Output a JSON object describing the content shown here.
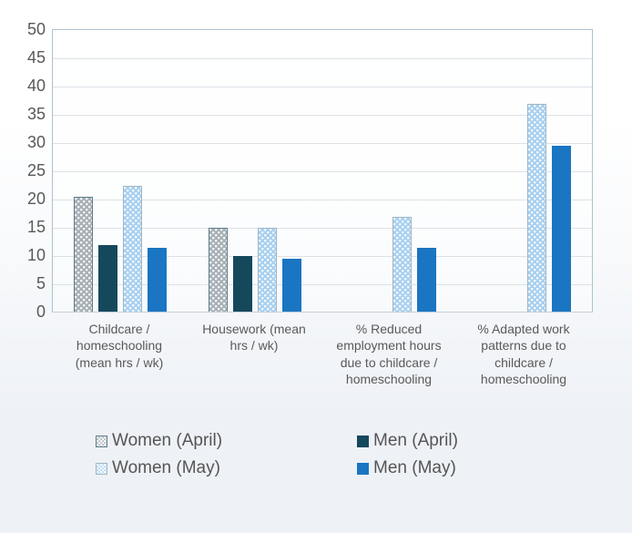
{
  "chart_data": {
    "type": "bar",
    "title": "",
    "categories": [
      "Childcare / homeschooling (mean hrs / wk)",
      "Housework (mean hrs / wk)",
      "% Reduced employment hours due to childcare / homeschooling",
      "% Adapted work patterns due to childcare / homeschooling"
    ],
    "series": [
      {
        "name": "Women (April)",
        "fill": "#a7b0b6",
        "border": "#5f7d8c",
        "pattern": "dots",
        "values": [
          20.5,
          15,
          null,
          null
        ]
      },
      {
        "name": "Men (April)",
        "fill": "#16485c",
        "border": "#16485c",
        "pattern": "solid",
        "values": [
          12,
          10,
          null,
          null
        ]
      },
      {
        "name": "Women (May)",
        "fill": "#a8d0f0",
        "border": "#9fb6c4",
        "pattern": "dots",
        "values": [
          22.5,
          15,
          17,
          37
        ]
      },
      {
        "name": "Men (May)",
        "fill": "#1a75c2",
        "border": "#1a75c2",
        "pattern": "solid",
        "values": [
          11.5,
          9.5,
          11.5,
          29.5
        ]
      }
    ],
    "y_axis": {
      "min": 0,
      "max": 50,
      "step": 5,
      "ticks": [
        0,
        5,
        10,
        15,
        20,
        25,
        30,
        35,
        40,
        45,
        50
      ]
    },
    "xlabel": "",
    "ylabel": "",
    "grid": "horizontal",
    "legend_position": "bottom",
    "legend_columns": 2,
    "colors": {
      "axis_border": "#aac3ce",
      "gridline": "#dde2e7",
      "tick_text": "#595959",
      "category_text": "#595959",
      "legend_text": "#555555",
      "background_top": "#ffffff",
      "background_bottom": "#eef2f6"
    }
  }
}
